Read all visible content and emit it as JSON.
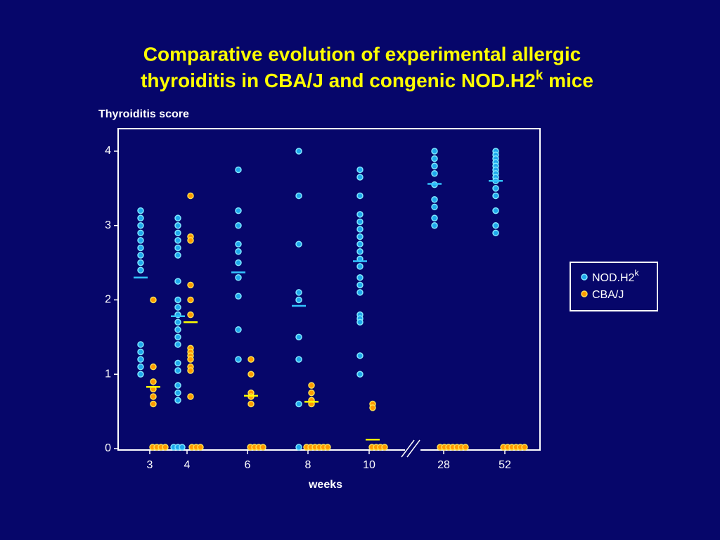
{
  "chart_data": {
    "type": "dotplot",
    "title": [
      "Comparative evolution of experimental allergic",
      "thyroiditis in CBA/J and congenic NOD.H2",
      "k",
      " mice"
    ],
    "y_label": "Thyroiditis score",
    "x_label": "weeks",
    "categories": [
      "3",
      "4",
      "6",
      "8",
      "10",
      "28",
      "52"
    ],
    "ylim": [
      0,
      4.3
    ],
    "yticks": [
      0,
      1,
      2,
      3,
      4
    ],
    "series": [
      {
        "name": "NOD.H2",
        "name_superscript": "k",
        "color": "#1ea8ec",
        "mean_color": "#33c4ff",
        "values": [
          [
            3.2,
            3.1,
            3.0,
            2.9,
            2.8,
            2.7,
            2.6,
            2.5,
            2.4,
            1.4,
            1.3,
            1.2,
            1.1,
            1.0
          ],
          [
            3.1,
            3.0,
            2.9,
            2.8,
            2.7,
            2.6,
            2.25,
            2.0,
            1.9,
            1.8,
            1.7,
            1.6,
            1.5,
            1.4,
            1.15,
            1.05,
            0.85,
            0.75,
            0.65,
            0,
            0,
            0
          ],
          [
            3.75,
            3.2,
            3.0,
            2.75,
            2.65,
            2.5,
            2.3,
            2.05,
            1.6,
            1.2
          ],
          [
            4.0,
            3.4,
            2.75,
            2.1,
            2.0,
            1.5,
            1.2,
            0.6,
            0
          ],
          [
            3.75,
            3.65,
            3.4,
            3.15,
            3.05,
            2.95,
            2.85,
            2.75,
            2.65,
            2.55,
            2.45,
            2.3,
            2.2,
            2.1,
            1.8,
            1.75,
            1.7,
            1.25,
            1.0
          ],
          [
            4.0,
            3.9,
            3.8,
            3.7,
            3.55,
            3.35,
            3.25,
            3.1,
            3.0
          ],
          [
            4.0,
            3.95,
            3.9,
            3.85,
            3.8,
            3.75,
            3.7,
            3.65,
            3.6,
            3.5,
            3.4,
            3.2,
            3.0,
            2.9
          ]
        ],
        "means": [
          2.3,
          1.78,
          2.37,
          1.92,
          2.52,
          3.56,
          3.6
        ]
      },
      {
        "name": "CBA/J",
        "color": "#ff9a00",
        "mean_color": "#ffff00",
        "values": [
          [
            2.0,
            1.1,
            0.9,
            0.8,
            0.7,
            0.6,
            0,
            0,
            0,
            0
          ],
          [
            3.4,
            2.85,
            2.8,
            2.2,
            2.0,
            1.8,
            1.35,
            1.3,
            1.25,
            1.2,
            1.1,
            1.05,
            0.7,
            0,
            0,
            0
          ],
          [
            1.2,
            1.0,
            0.75,
            0.7,
            0.6,
            0,
            0,
            0,
            0
          ],
          [
            0.85,
            0.75,
            0.65,
            0.6,
            0,
            0,
            0,
            0,
            0,
            0
          ],
          [
            0.6,
            0.55,
            0,
            0,
            0,
            0
          ],
          [
            0,
            0,
            0,
            0,
            0,
            0,
            0
          ],
          [
            0,
            0,
            0,
            0,
            0,
            0
          ]
        ],
        "means": [
          0.83,
          1.7,
          0.71,
          0.63,
          0.12,
          null,
          null
        ]
      }
    ]
  }
}
